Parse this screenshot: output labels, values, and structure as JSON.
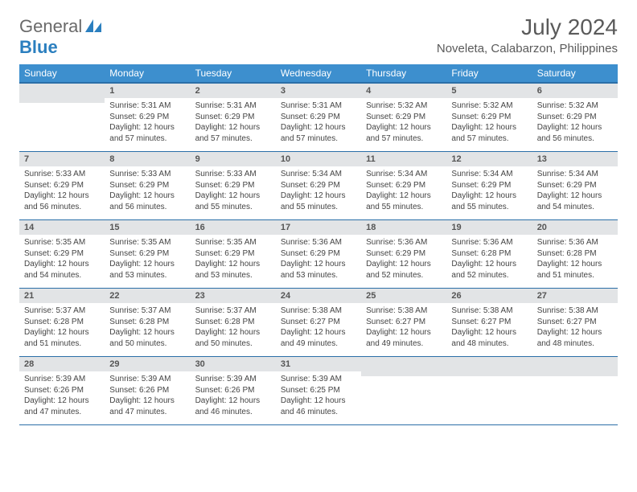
{
  "logo": {
    "general": "General",
    "blue": "Blue"
  },
  "month_title": "July 2024",
  "location": "Noveleta, Calabarzon, Philippines",
  "weekdays": [
    "Sunday",
    "Monday",
    "Tuesday",
    "Wednesday",
    "Thursday",
    "Friday",
    "Saturday"
  ],
  "colors": {
    "header_bg": "#3d8fce",
    "header_border": "#2b6fa8",
    "daynum_bg": "#e2e4e6",
    "text": "#444444",
    "title": "#5a5a5a"
  },
  "typography": {
    "month_title_fontsize": 28,
    "location_fontsize": 15,
    "weekday_fontsize": 12,
    "daynum_fontsize": 11,
    "body_fontsize": 10
  },
  "layout": {
    "columns": 7,
    "rows": 5,
    "first_weekday_index": 1
  },
  "days": [
    {
      "n": "1",
      "sunrise": "5:31 AM",
      "sunset": "6:29 PM",
      "daylight": "12 hours and 57 minutes."
    },
    {
      "n": "2",
      "sunrise": "5:31 AM",
      "sunset": "6:29 PM",
      "daylight": "12 hours and 57 minutes."
    },
    {
      "n": "3",
      "sunrise": "5:31 AM",
      "sunset": "6:29 PM",
      "daylight": "12 hours and 57 minutes."
    },
    {
      "n": "4",
      "sunrise": "5:32 AM",
      "sunset": "6:29 PM",
      "daylight": "12 hours and 57 minutes."
    },
    {
      "n": "5",
      "sunrise": "5:32 AM",
      "sunset": "6:29 PM",
      "daylight": "12 hours and 57 minutes."
    },
    {
      "n": "6",
      "sunrise": "5:32 AM",
      "sunset": "6:29 PM",
      "daylight": "12 hours and 56 minutes."
    },
    {
      "n": "7",
      "sunrise": "5:33 AM",
      "sunset": "6:29 PM",
      "daylight": "12 hours and 56 minutes."
    },
    {
      "n": "8",
      "sunrise": "5:33 AM",
      "sunset": "6:29 PM",
      "daylight": "12 hours and 56 minutes."
    },
    {
      "n": "9",
      "sunrise": "5:33 AM",
      "sunset": "6:29 PM",
      "daylight": "12 hours and 55 minutes."
    },
    {
      "n": "10",
      "sunrise": "5:34 AM",
      "sunset": "6:29 PM",
      "daylight": "12 hours and 55 minutes."
    },
    {
      "n": "11",
      "sunrise": "5:34 AM",
      "sunset": "6:29 PM",
      "daylight": "12 hours and 55 minutes."
    },
    {
      "n": "12",
      "sunrise": "5:34 AM",
      "sunset": "6:29 PM",
      "daylight": "12 hours and 55 minutes."
    },
    {
      "n": "13",
      "sunrise": "5:34 AM",
      "sunset": "6:29 PM",
      "daylight": "12 hours and 54 minutes."
    },
    {
      "n": "14",
      "sunrise": "5:35 AM",
      "sunset": "6:29 PM",
      "daylight": "12 hours and 54 minutes."
    },
    {
      "n": "15",
      "sunrise": "5:35 AM",
      "sunset": "6:29 PM",
      "daylight": "12 hours and 53 minutes."
    },
    {
      "n": "16",
      "sunrise": "5:35 AM",
      "sunset": "6:29 PM",
      "daylight": "12 hours and 53 minutes."
    },
    {
      "n": "17",
      "sunrise": "5:36 AM",
      "sunset": "6:29 PM",
      "daylight": "12 hours and 53 minutes."
    },
    {
      "n": "18",
      "sunrise": "5:36 AM",
      "sunset": "6:29 PM",
      "daylight": "12 hours and 52 minutes."
    },
    {
      "n": "19",
      "sunrise": "5:36 AM",
      "sunset": "6:28 PM",
      "daylight": "12 hours and 52 minutes."
    },
    {
      "n": "20",
      "sunrise": "5:36 AM",
      "sunset": "6:28 PM",
      "daylight": "12 hours and 51 minutes."
    },
    {
      "n": "21",
      "sunrise": "5:37 AM",
      "sunset": "6:28 PM",
      "daylight": "12 hours and 51 minutes."
    },
    {
      "n": "22",
      "sunrise": "5:37 AM",
      "sunset": "6:28 PM",
      "daylight": "12 hours and 50 minutes."
    },
    {
      "n": "23",
      "sunrise": "5:37 AM",
      "sunset": "6:28 PM",
      "daylight": "12 hours and 50 minutes."
    },
    {
      "n": "24",
      "sunrise": "5:38 AM",
      "sunset": "6:27 PM",
      "daylight": "12 hours and 49 minutes."
    },
    {
      "n": "25",
      "sunrise": "5:38 AM",
      "sunset": "6:27 PM",
      "daylight": "12 hours and 49 minutes."
    },
    {
      "n": "26",
      "sunrise": "5:38 AM",
      "sunset": "6:27 PM",
      "daylight": "12 hours and 48 minutes."
    },
    {
      "n": "27",
      "sunrise": "5:38 AM",
      "sunset": "6:27 PM",
      "daylight": "12 hours and 48 minutes."
    },
    {
      "n": "28",
      "sunrise": "5:39 AM",
      "sunset": "6:26 PM",
      "daylight": "12 hours and 47 minutes."
    },
    {
      "n": "29",
      "sunrise": "5:39 AM",
      "sunset": "6:26 PM",
      "daylight": "12 hours and 47 minutes."
    },
    {
      "n": "30",
      "sunrise": "5:39 AM",
      "sunset": "6:26 PM",
      "daylight": "12 hours and 46 minutes."
    },
    {
      "n": "31",
      "sunrise": "5:39 AM",
      "sunset": "6:25 PM",
      "daylight": "12 hours and 46 minutes."
    }
  ],
  "labels": {
    "sunrise": "Sunrise:",
    "sunset": "Sunset:",
    "daylight": "Daylight:"
  }
}
